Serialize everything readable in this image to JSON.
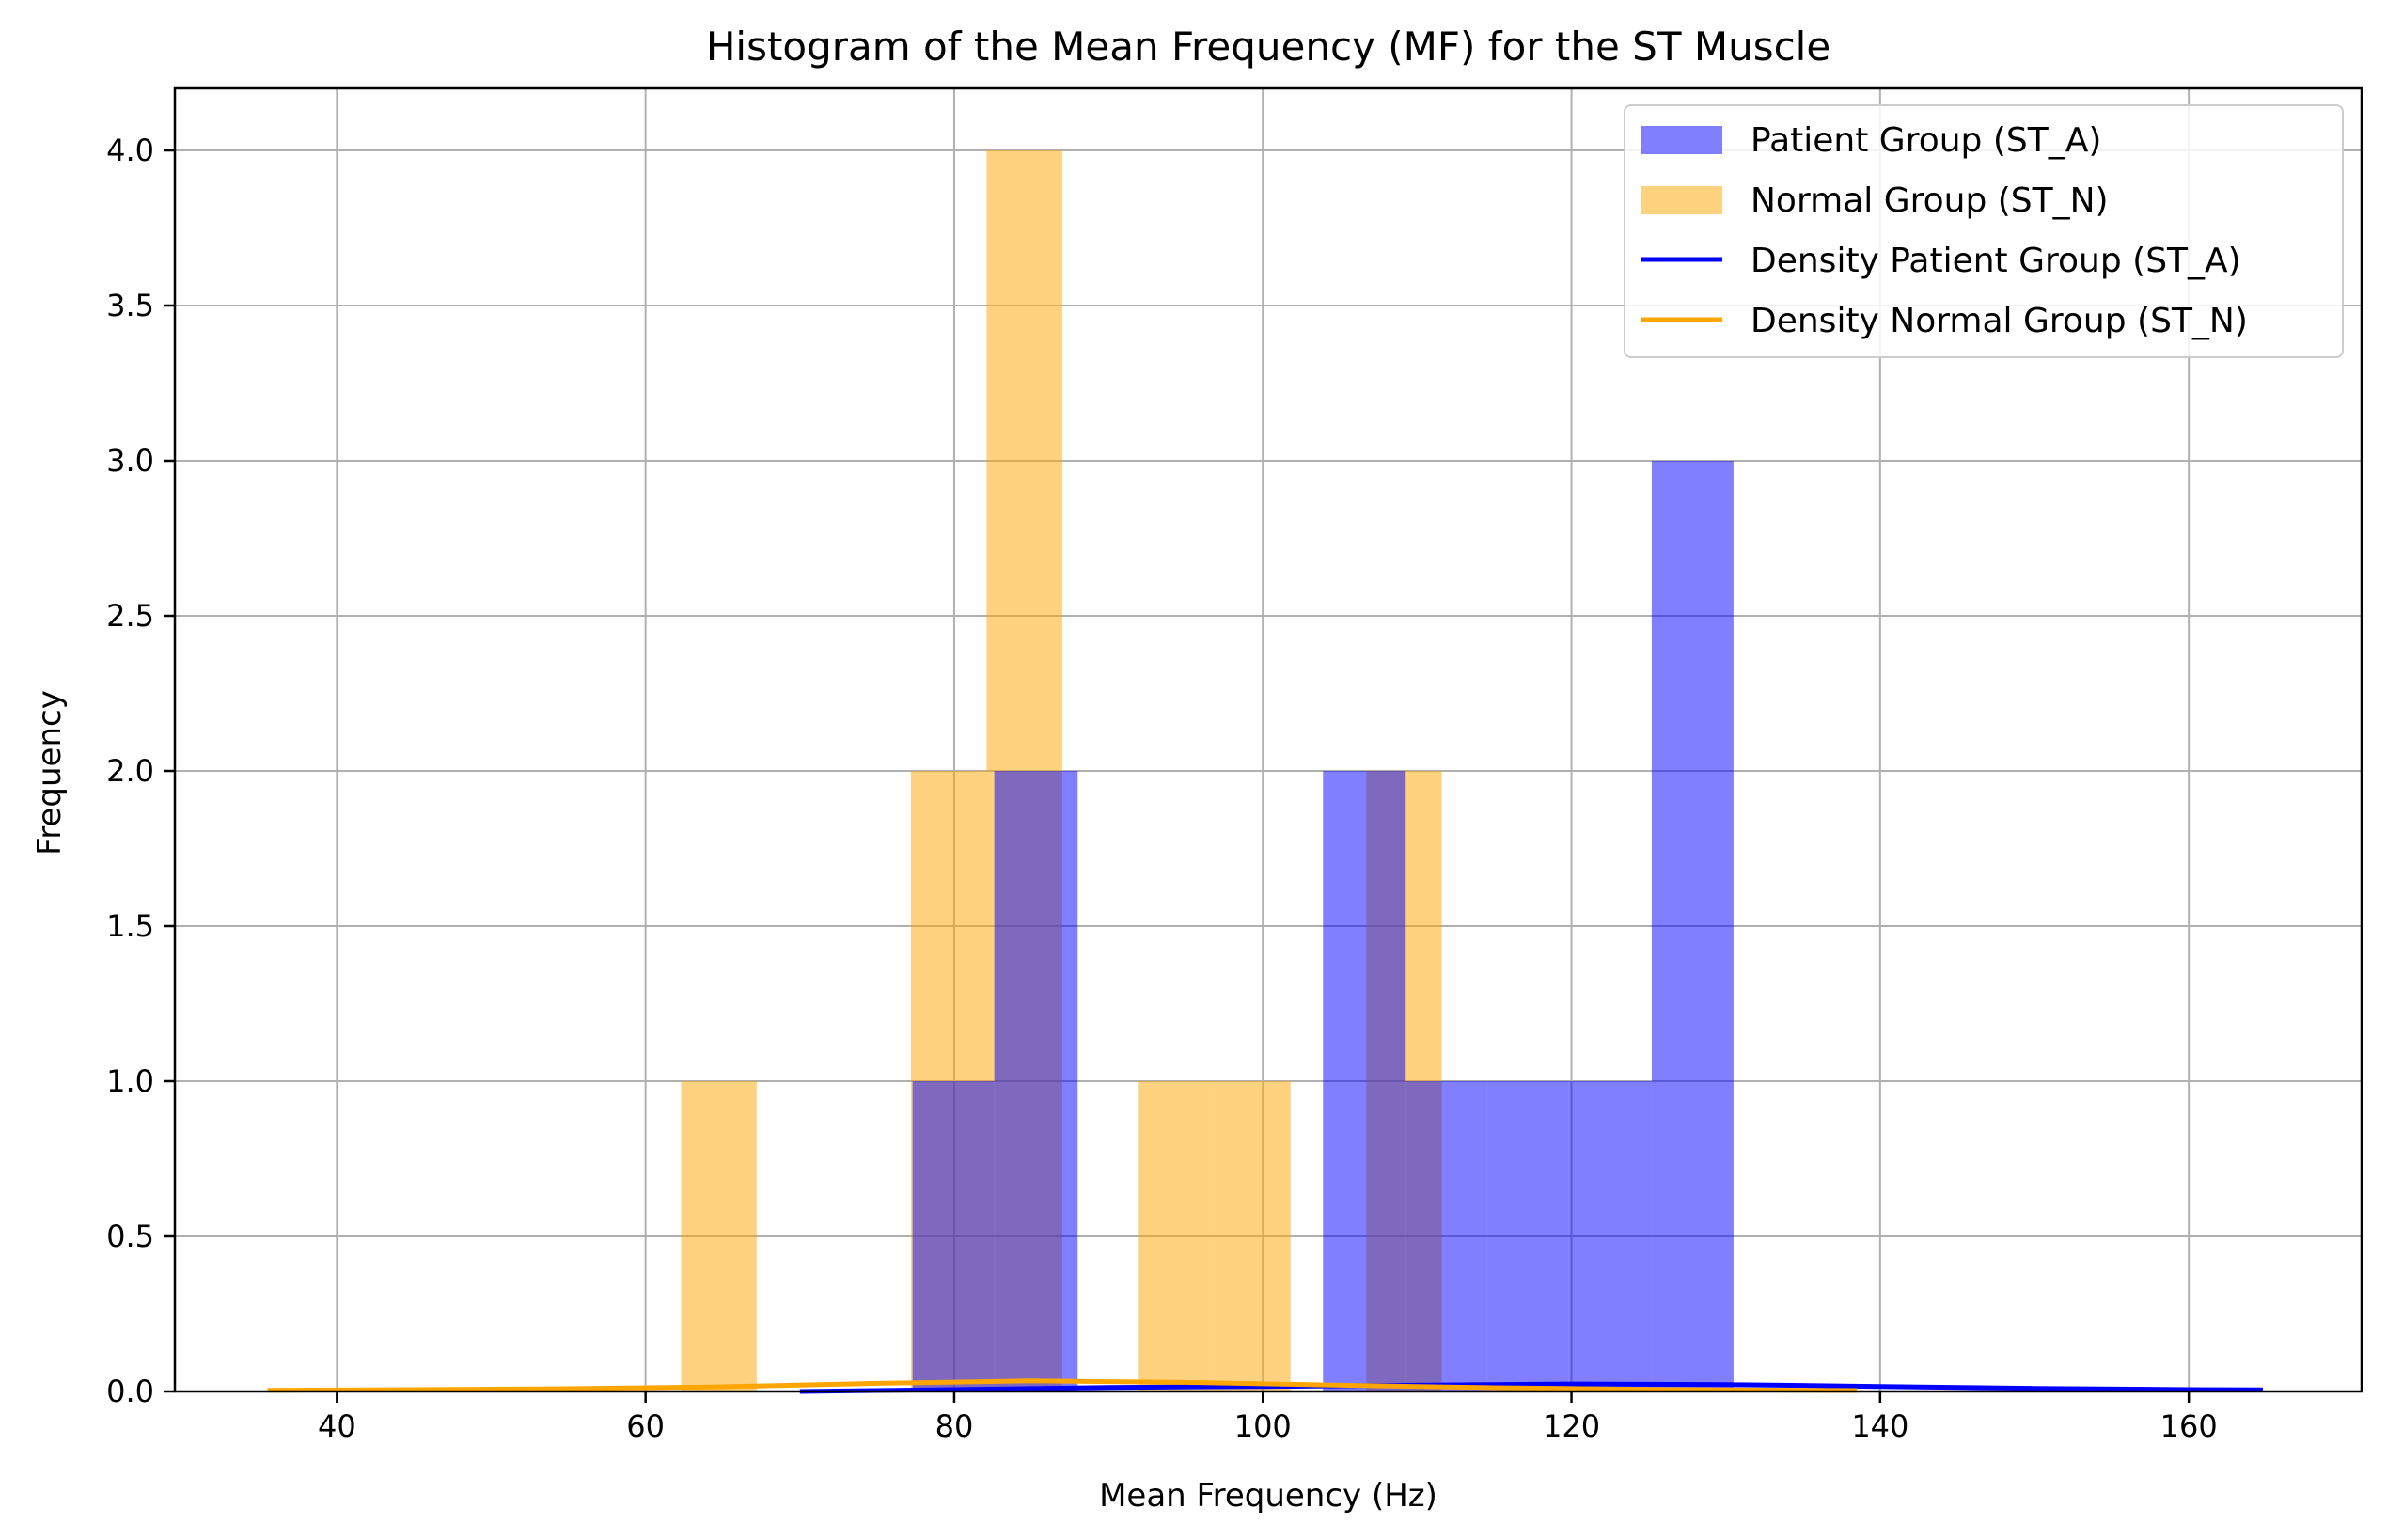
{
  "chart_data": {
    "type": "bar",
    "title": "Histogram of the Mean Frequency (MF) for the ST Muscle",
    "xlabel": "Mean Frequency (Hz)",
    "ylabel": "Frequency",
    "xlim": [
      29.5,
      171.2
    ],
    "ylim": [
      0,
      4.2
    ],
    "xticks": [
      40,
      60,
      80,
      100,
      120,
      140,
      160
    ],
    "yticks": [
      0.0,
      0.5,
      1.0,
      1.5,
      2.0,
      2.5,
      3.0,
      3.5,
      4.0
    ],
    "grid": true,
    "legend_position": "top-right",
    "colors": {
      "patient": "#8080ff",
      "normal": "#ffd280",
      "overlap": "#bf9780",
      "patient_density": "#0000ff",
      "normal_density": "#ffa500"
    },
    "series": [
      {
        "name": "Patient Group (ST_A)",
        "kind": "histogram",
        "bins": [
          {
            "x0": 77.3,
            "x1": 82.6,
            "count": 1
          },
          {
            "x0": 82.6,
            "x1": 88.0,
            "count": 2
          },
          {
            "x0": 103.9,
            "x1": 109.2,
            "count": 2
          },
          {
            "x0": 109.2,
            "x1": 114.5,
            "count": 1
          },
          {
            "x0": 114.5,
            "x1": 119.8,
            "count": 1
          },
          {
            "x0": 119.8,
            "x1": 125.2,
            "count": 1
          },
          {
            "x0": 125.2,
            "x1": 130.5,
            "count": 3
          }
        ]
      },
      {
        "name": "Normal Group (ST_N)",
        "kind": "histogram",
        "bins": [
          {
            "x0": 62.3,
            "x1": 67.2,
            "count": 1
          },
          {
            "x0": 77.2,
            "x1": 82.1,
            "count": 2
          },
          {
            "x0": 82.1,
            "x1": 87.0,
            "count": 4
          },
          {
            "x0": 91.9,
            "x1": 96.8,
            "count": 1
          },
          {
            "x0": 96.8,
            "x1": 101.8,
            "count": 1
          },
          {
            "x0": 106.7,
            "x1": 111.6,
            "count": 2
          }
        ]
      },
      {
        "name": "Density Patient Group (ST_A)",
        "kind": "density",
        "x": [
          70,
          80,
          90,
          100,
          110,
          120,
          130,
          140,
          150,
          160,
          164.8
        ],
        "y": [
          0.0,
          0.006,
          0.013,
          0.016,
          0.02,
          0.024,
          0.022,
          0.016,
          0.01,
          0.006,
          0.005
        ]
      },
      {
        "name": "Density Normal Group (ST_N)",
        "kind": "density",
        "x": [
          35.5,
          45,
          55,
          65,
          75,
          85,
          95,
          105,
          115,
          125,
          138.5
        ],
        "y": [
          0.004,
          0.006,
          0.009,
          0.015,
          0.026,
          0.034,
          0.029,
          0.02,
          0.012,
          0.007,
          0.003
        ]
      }
    ]
  }
}
